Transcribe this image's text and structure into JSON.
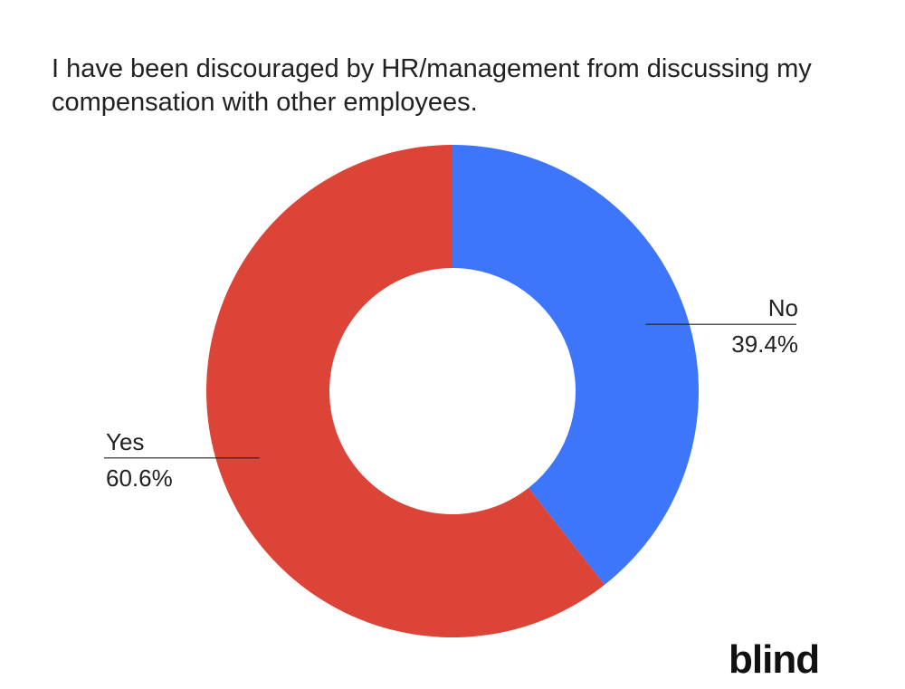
{
  "title": "I have been discouraged by HR/management from discussing my compensation with other employees.",
  "brand": "blind",
  "chart_data": {
    "type": "pie",
    "donut": true,
    "slices": [
      {
        "label": "No",
        "value": 39.4,
        "display": "39.4%",
        "color": "#3d75fb"
      },
      {
        "label": "Yes",
        "value": 60.6,
        "display": "60.6%",
        "color": "#db4437"
      }
    ]
  }
}
